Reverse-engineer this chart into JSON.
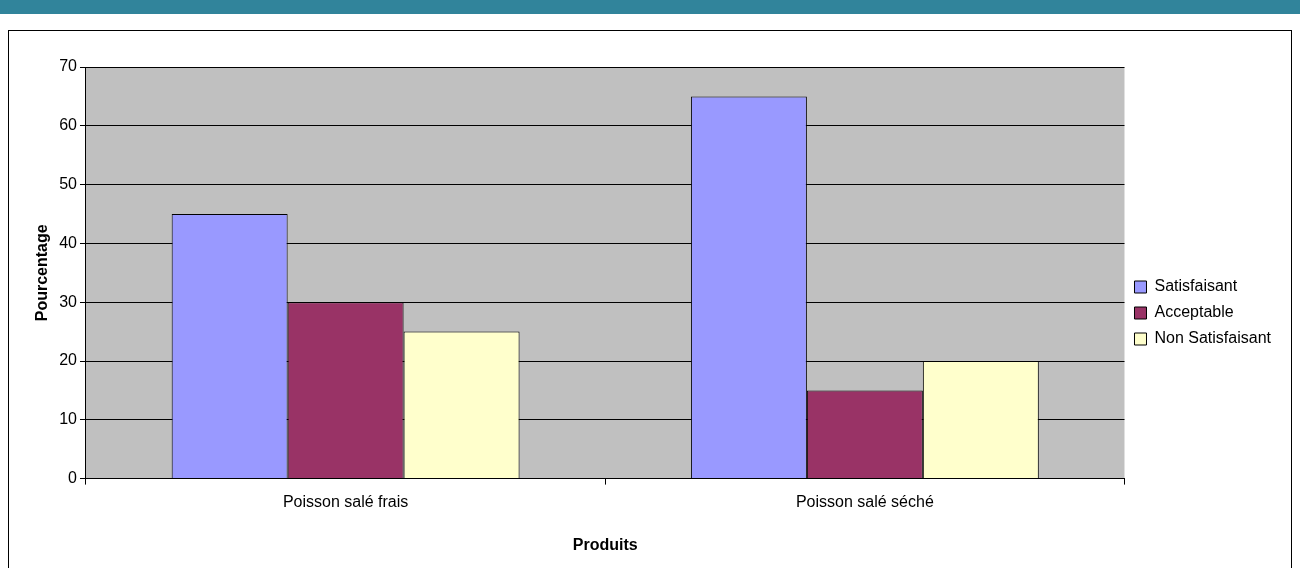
{
  "chart_data": {
    "type": "bar",
    "xlabel": "Produits",
    "ylabel": "Pourcentage",
    "categories": [
      "Poisson salé frais",
      "Poisson salé séché"
    ],
    "series": [
      {
        "name": "Satisfaisant",
        "color": "#9999ff",
        "values": [
          45,
          65
        ]
      },
      {
        "name": "Acceptable",
        "color": "#993366",
        "values": [
          30,
          15
        ]
      },
      {
        "name": "Non Satisfaisant",
        "color": "#ffffcc",
        "values": [
          25,
          20
        ]
      }
    ],
    "ylim": [
      0,
      70
    ],
    "yticks": [
      0,
      10,
      20,
      30,
      40,
      50,
      60,
      70
    ],
    "grid": "y",
    "legend": "right"
  }
}
